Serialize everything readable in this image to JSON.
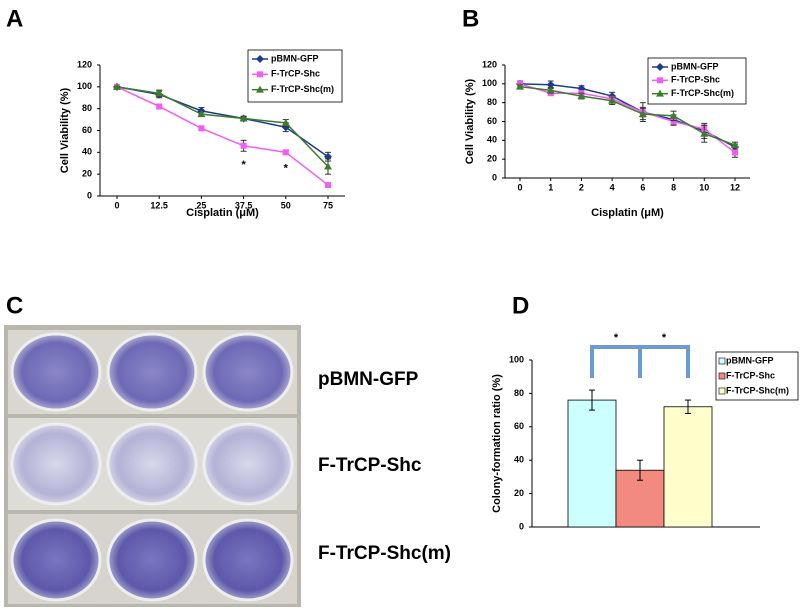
{
  "chart_data": [
    {
      "type": "line",
      "panel": "A",
      "xlabel": "Cisplatin (μM)",
      "ylabel": "Cell Viability (%)",
      "categories": [
        "0",
        "12.5",
        "25",
        "37.5",
        "50",
        "75"
      ],
      "ylim": [
        0,
        120
      ],
      "yticks": [
        0,
        20,
        40,
        60,
        80,
        100,
        120
      ],
      "series": [
        {
          "name": "pBMN-GFP",
          "color": "#1f3b8f",
          "marker": "diamond",
          "values": [
            100,
            93,
            78,
            71,
            63,
            36
          ],
          "errors": [
            0,
            3,
            3,
            2,
            4,
            4
          ]
        },
        {
          "name": "F-TrCP-Shc",
          "color": "#f25cf2",
          "marker": "square",
          "values": [
            100,
            82,
            62,
            46,
            40,
            10
          ],
          "errors": [
            0,
            2,
            2,
            5,
            2,
            1
          ]
        },
        {
          "name": "F-TrCP-Shc(m)",
          "color": "#3c7d2c",
          "marker": "triangle",
          "values": [
            100,
            94,
            75,
            71,
            67,
            27
          ],
          "errors": [
            0,
            3,
            2,
            2,
            3,
            7
          ]
        }
      ],
      "annotations": [
        {
          "text": "*",
          "x": "37.5"
        },
        {
          "text": "*",
          "x": "50"
        }
      ]
    },
    {
      "type": "line",
      "panel": "B",
      "xlabel": "Cisplatin (μM)",
      "ylabel": "Cell Viability (%)",
      "categories": [
        "0",
        "1",
        "2",
        "4",
        "6",
        "8",
        "10",
        "12"
      ],
      "ylim": [
        0,
        120
      ],
      "yticks": [
        0,
        20,
        40,
        60,
        80,
        100,
        120
      ],
      "series": [
        {
          "name": "pBMN-GFP",
          "color": "#1f3b8f",
          "marker": "diamond",
          "values": [
            100,
            99,
            95,
            87,
            70,
            62,
            50,
            33
          ],
          "errors": [
            3,
            4,
            3,
            4,
            10,
            5,
            8,
            3
          ]
        },
        {
          "name": "F-TrCP-Shc",
          "color": "#f25cf2",
          "marker": "square",
          "values": [
            100,
            90,
            90,
            84,
            70,
            60,
            52,
            27
          ],
          "errors": [
            2,
            2,
            2,
            3,
            5,
            4,
            4,
            5
          ]
        },
        {
          "name": "F-TrCP-Shc(m)",
          "color": "#3c7d2c",
          "marker": "triangle",
          "values": [
            97,
            93,
            87,
            82,
            68,
            66,
            47,
            35
          ],
          "errors": [
            2,
            3,
            3,
            4,
            6,
            5,
            9,
            3
          ]
        }
      ],
      "annotations": []
    },
    {
      "type": "bar",
      "panel": "D",
      "ylabel": "Colony-formation ratio (%)",
      "ylim": [
        0,
        100
      ],
      "yticks": [
        0,
        20,
        40,
        60,
        80,
        100
      ],
      "series": [
        {
          "name": "pBMN-GFP",
          "color": "#ccffff",
          "values": [
            76
          ],
          "errors": [
            6
          ]
        },
        {
          "name": "F-TrCP-Shc",
          "color": "#f28a80",
          "values": [
            34
          ],
          "errors": [
            6
          ]
        },
        {
          "name": "F-TrCP-Shc(m)",
          "color": "#ffffcc",
          "values": [
            72
          ],
          "errors": [
            4
          ]
        }
      ],
      "annotations": [
        {
          "text": "*",
          "between": [
            "pBMN-GFP",
            "F-TrCP-Shc"
          ]
        },
        {
          "text": "*",
          "between": [
            "F-TrCP-Shc",
            "F-TrCP-Shc(m)"
          ]
        }
      ]
    }
  ],
  "photo": {
    "panel": "C",
    "labels": [
      "pBMN-GFP",
      "F-TrCP-Shc",
      "F-TrCP-Shc(m)"
    ]
  }
}
